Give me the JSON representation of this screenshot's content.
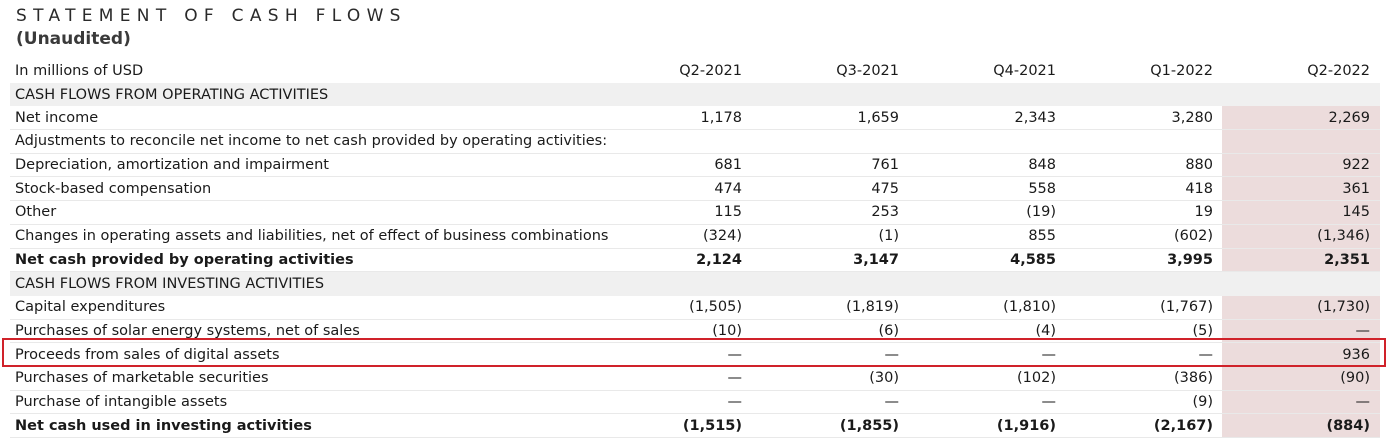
{
  "title": "STATEMENT OF CASH FLOWS",
  "subtitle": "(Unaudited)",
  "units_label": "In millions of USD",
  "columns": [
    "Q2-2021",
    "Q3-2021",
    "Q4-2021",
    "Q1-2022",
    "Q2-2022"
  ],
  "highlight_color": "#d0222a",
  "highlight_column_color": "#ecdcdc",
  "rows": [
    {
      "type": "section",
      "label": "CASH FLOWS FROM OPERATING ACTIVITIES"
    },
    {
      "type": "data",
      "label": "Net income",
      "values": [
        "1,178",
        "1,659",
        "2,343",
        "3,280",
        "2,269"
      ]
    },
    {
      "type": "data",
      "label": "Adjustments to reconcile net income to net cash provided by operating activities:",
      "values": [
        "",
        "",
        "",
        "",
        ""
      ]
    },
    {
      "type": "data",
      "label": "Depreciation, amortization and impairment",
      "values": [
        "681",
        "761",
        "848",
        "880",
        "922"
      ]
    },
    {
      "type": "data",
      "label": "Stock-based compensation",
      "values": [
        "474",
        "475",
        "558",
        "418",
        "361"
      ]
    },
    {
      "type": "data",
      "label": "Other",
      "values": [
        "115",
        "253",
        "(19)",
        "19",
        "145"
      ]
    },
    {
      "type": "data",
      "label": "Changes in operating assets and liabilities, net of effect of business combinations",
      "values": [
        "(324)",
        "(1)",
        "855",
        "(602)",
        "(1,346)"
      ]
    },
    {
      "type": "total",
      "label": "Net cash provided by operating activities",
      "values": [
        "2,124",
        "3,147",
        "4,585",
        "3,995",
        "2,351"
      ]
    },
    {
      "type": "section",
      "label": "CASH FLOWS FROM INVESTING ACTIVITIES"
    },
    {
      "type": "data",
      "label": "Capital expenditures",
      "values": [
        "(1,505)",
        "(1,819)",
        "(1,810)",
        "(1,767)",
        "(1,730)"
      ]
    },
    {
      "type": "data",
      "label": "Purchases of solar energy systems, net of sales",
      "values": [
        "(10)",
        "(6)",
        "(4)",
        "(5)",
        "—"
      ]
    },
    {
      "type": "data",
      "label": "Proceeds from sales of digital assets",
      "values": [
        "—",
        "—",
        "—",
        "—",
        "936"
      ]
    },
    {
      "type": "data",
      "label": "Purchases of marketable securities",
      "values": [
        "—",
        "(30)",
        "(102)",
        "(386)",
        "(90)"
      ]
    },
    {
      "type": "data",
      "label": "Purchase of intangible assets",
      "values": [
        "—",
        "—",
        "—",
        "(9)",
        "—"
      ]
    },
    {
      "type": "total",
      "label": "Net cash used in investing activities",
      "values": [
        "(1,515)",
        "(1,855)",
        "(1,916)",
        "(2,167)",
        "(884)"
      ]
    }
  ]
}
